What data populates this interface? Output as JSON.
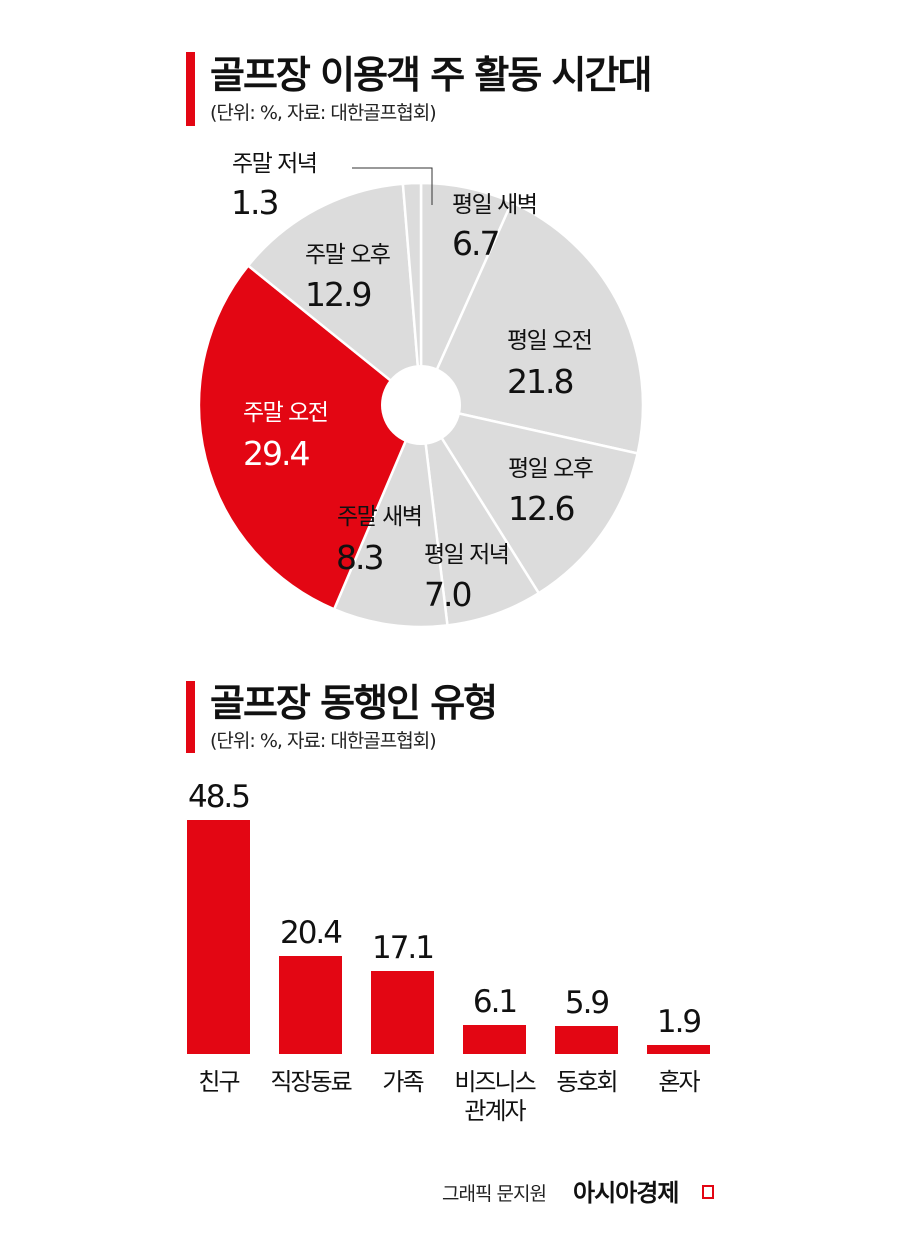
{
  "chart_data": [
    {
      "type": "pie",
      "title": "골프장 이용객 주 활동 시간대",
      "subtitle": "(단위: %, 자료: 대한골프협회)",
      "donut": true,
      "start_angle": "12 o'clock, clockwise",
      "slices": [
        {
          "label": "평일 새벽",
          "value": 6.7,
          "color": "#dcdcdc"
        },
        {
          "label": "평일 오전",
          "value": 21.8,
          "color": "#dcdcdc"
        },
        {
          "label": "평일 오후",
          "value": 12.6,
          "color": "#dcdcdc"
        },
        {
          "label": "평일 저녁",
          "value": 7.0,
          "color": "#dcdcdc"
        },
        {
          "label": "주말 새벽",
          "value": 8.3,
          "color": "#dcdcdc"
        },
        {
          "label": "주말 오전",
          "value": 29.4,
          "color": "#e30613"
        },
        {
          "label": "주말 오후",
          "value": 12.9,
          "color": "#dcdcdc"
        },
        {
          "label": "주말 저녁",
          "value": 1.3,
          "color": "#dcdcdc"
        }
      ]
    },
    {
      "type": "bar",
      "title": "골프장 동행인 유형",
      "subtitle": "(단위: %, 자료: 대한골프협회)",
      "categories": [
        "친구",
        "직장동료",
        "가족",
        "비즈니스 관계자",
        "동호회",
        "혼자"
      ],
      "values": [
        48.5,
        20.4,
        17.1,
        6.1,
        5.9,
        1.9
      ],
      "value_labels": [
        "48.5",
        "20.4",
        "17.1",
        "6.1",
        "5.9",
        "1.9"
      ],
      "color": "#e30613",
      "xlabel": "",
      "ylabel": "",
      "grid": false,
      "ylim": [
        0,
        50
      ]
    }
  ],
  "pie": {
    "title": "골프장 이용객 주 활동 시간대",
    "subtitle": "(단위: %, 자료: 대한골프협회)",
    "labels": [
      {
        "name": "평일 새벽",
        "value": "6.7"
      },
      {
        "name": "평일 오전",
        "value": "21.8"
      },
      {
        "name": "평일 오후",
        "value": "12.6"
      },
      {
        "name": "평일 저녁",
        "value": "7.0"
      },
      {
        "name": "주말 새벽",
        "value": "8.3"
      },
      {
        "name": "주말 오전",
        "value": "29.4"
      },
      {
        "name": "주말 오후",
        "value": "12.9"
      },
      {
        "name": "주말 저녁",
        "value": "1.3"
      }
    ]
  },
  "bar": {
    "title": "골프장 동행인 유형",
    "subtitle": "(단위: %, 자료: 대한골프협회)",
    "items": [
      {
        "name": "친구",
        "value": "48.5"
      },
      {
        "name": "직장동료",
        "value": "20.4"
      },
      {
        "name": "가족",
        "value": "17.1"
      },
      {
        "name": "비즈니스\n관계자",
        "value": "6.1"
      },
      {
        "name": "동호회",
        "value": "5.9"
      },
      {
        "name": "혼자",
        "value": "1.9"
      }
    ]
  },
  "footer": {
    "credit": "그래픽 문지원",
    "brand": "아시아경제"
  },
  "colors": {
    "accent": "#e30613",
    "slice_gray": "#dcdcdc",
    "text": "#111111"
  }
}
